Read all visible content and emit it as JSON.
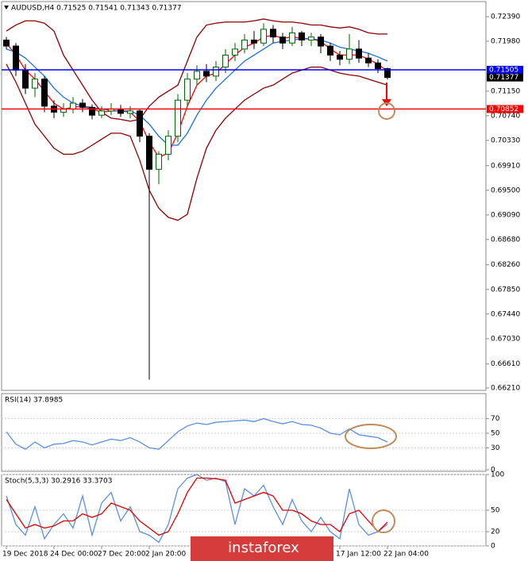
{
  "chart_data": [
    {
      "type": "candlestick",
      "title": "AUDUSD,H4  0.71525 0.71541 0.71343 0.71377",
      "ylim": [
        0.6617,
        0.7264
      ],
      "yticks": [
        {
          "value": 0.7239,
          "label": "0.72390"
        },
        {
          "value": 0.7198,
          "label": "0.71980"
        },
        {
          "value": 0.7115,
          "label": "0.71150"
        },
        {
          "value": 0.7074,
          "label": "0.70740"
        },
        {
          "value": 0.7033,
          "label": "0.70330"
        },
        {
          "value": 0.6991,
          "label": "0.69910"
        },
        {
          "value": 0.695,
          "label": "0.69500"
        },
        {
          "value": 0.6909,
          "label": "0.69090"
        },
        {
          "value": 0.6868,
          "label": "0.68680"
        },
        {
          "value": 0.6826,
          "label": "0.68260"
        },
        {
          "value": 0.6785,
          "label": "0.67850"
        },
        {
          "value": 0.6744,
          "label": "0.67440"
        },
        {
          "value": 0.6703,
          "label": "0.67030"
        },
        {
          "value": 0.6661,
          "label": "0.66610"
        },
        {
          "value": 0.6621,
          "label": "0.66210"
        }
      ],
      "open": [
        0.72,
        0.719,
        0.715,
        0.712,
        0.7135,
        0.709,
        0.708,
        0.7085,
        0.7095,
        0.7088,
        0.7075,
        0.7082,
        0.7085,
        0.7078,
        0.7082,
        0.704,
        0.6985,
        0.701,
        0.704,
        0.71,
        0.7135,
        0.7148,
        0.714,
        0.7155,
        0.7175,
        0.7185,
        0.72,
        0.7195,
        0.7218,
        0.7205,
        0.7195,
        0.7212,
        0.72,
        0.7205,
        0.719,
        0.7175,
        0.7168,
        0.7185,
        0.717,
        0.7162,
        0.71525
      ],
      "high": [
        0.7205,
        0.7195,
        0.716,
        0.7145,
        0.714,
        0.71,
        0.7095,
        0.7105,
        0.7102,
        0.7093,
        0.709,
        0.7095,
        0.7092,
        0.709,
        0.7085,
        0.7045,
        0.7015,
        0.705,
        0.711,
        0.7145,
        0.7158,
        0.716,
        0.7165,
        0.7185,
        0.7195,
        0.721,
        0.7215,
        0.7228,
        0.7225,
        0.7212,
        0.7222,
        0.7215,
        0.7212,
        0.721,
        0.7195,
        0.7182,
        0.721,
        0.72,
        0.7178,
        0.7168,
        0.71541
      ],
      "low": [
        0.7185,
        0.714,
        0.711,
        0.7105,
        0.708,
        0.707,
        0.7072,
        0.7078,
        0.708,
        0.7068,
        0.707,
        0.7075,
        0.7072,
        0.707,
        0.703,
        0.6635,
        0.696,
        0.7,
        0.703,
        0.709,
        0.7125,
        0.713,
        0.7132,
        0.7145,
        0.7165,
        0.7178,
        0.7185,
        0.719,
        0.7195,
        0.7185,
        0.719,
        0.719,
        0.719,
        0.7178,
        0.7165,
        0.7158,
        0.716,
        0.7162,
        0.7155,
        0.7145,
        0.71343
      ],
      "close": [
        0.719,
        0.715,
        0.712,
        0.7135,
        0.709,
        0.708,
        0.7085,
        0.7095,
        0.7088,
        0.7075,
        0.7082,
        0.7085,
        0.7078,
        0.7082,
        0.704,
        0.6985,
        0.701,
        0.704,
        0.71,
        0.7135,
        0.7148,
        0.714,
        0.7155,
        0.7175,
        0.7185,
        0.72,
        0.7195,
        0.7218,
        0.7205,
        0.7195,
        0.7212,
        0.72,
        0.7205,
        0.719,
        0.7175,
        0.7168,
        0.7185,
        0.717,
        0.7162,
        0.71525,
        0.71377
      ],
      "bull_color": "#006400",
      "bear_color": "#000000",
      "series": [
        {
          "color": "#ff0000",
          "values": [
            0.7195,
            0.7175,
            0.715,
            0.7135,
            0.7115,
            0.7095,
            0.7085,
            0.7088,
            0.709,
            0.7085,
            0.708,
            0.7082,
            0.7082,
            0.708,
            0.7065,
            0.703,
            0.7005,
            0.7012,
            0.7045,
            0.709,
            0.7125,
            0.714,
            0.7145,
            0.716,
            0.7175,
            0.7188,
            0.7195,
            0.7205,
            0.7208,
            0.7203,
            0.7205,
            0.7203,
            0.7202,
            0.7198,
            0.7185,
            0.7175,
            0.7175,
            0.7175,
            0.7168,
            0.716,
            0.7148
          ]
        },
        {
          "color": "#1e6fe0",
          "values": [
            0.7185,
            0.718,
            0.717,
            0.7155,
            0.714,
            0.712,
            0.7105,
            0.7095,
            0.709,
            0.7088,
            0.7085,
            0.7083,
            0.7082,
            0.7082,
            0.7075,
            0.706,
            0.704,
            0.7025,
            0.7025,
            0.7045,
            0.7075,
            0.71,
            0.712,
            0.7135,
            0.715,
            0.7165,
            0.7175,
            0.7185,
            0.7195,
            0.7198,
            0.72,
            0.7202,
            0.7202,
            0.72,
            0.7195,
            0.7188,
            0.7185,
            0.7182,
            0.7178,
            0.7172,
            0.7165
          ]
        },
        {
          "color": "#8b0000",
          "values": [
            0.7215,
            0.7225,
            0.7232,
            0.7232,
            0.7228,
            0.7215,
            0.7175,
            0.715,
            0.7125,
            0.71,
            0.708,
            0.707,
            0.7068,
            0.7065,
            0.7068,
            0.709,
            0.7105,
            0.7115,
            0.7125,
            0.7165,
            0.7205,
            0.7225,
            0.7228,
            0.723,
            0.723,
            0.723,
            0.7232,
            0.7235,
            0.7232,
            0.723,
            0.723,
            0.7228,
            0.7225,
            0.7225,
            0.7222,
            0.722,
            0.7222,
            0.7218,
            0.7212,
            0.721,
            0.721
          ]
        },
        {
          "color": "#8b0000",
          "values": [
            0.716,
            0.713,
            0.7095,
            0.706,
            0.704,
            0.702,
            0.701,
            0.701,
            0.7015,
            0.7025,
            0.7035,
            0.7045,
            0.7045,
            0.704,
            0.7,
            0.695,
            0.692,
            0.6905,
            0.69,
            0.691,
            0.697,
            0.702,
            0.705,
            0.707,
            0.7085,
            0.71,
            0.711,
            0.712,
            0.7125,
            0.7135,
            0.7145,
            0.715,
            0.7155,
            0.7155,
            0.715,
            0.7145,
            0.7142,
            0.714,
            0.7135,
            0.713,
            0.7125
          ]
        }
      ],
      "levels": [
        {
          "value": 0.71505,
          "label": "0.71505",
          "color": "#0000ff"
        },
        {
          "value": 0.70852,
          "label": "0.70852",
          "color": "#ff0000"
        },
        {
          "value": 0.71377,
          "label": "0.71377",
          "color": "#000000"
        }
      ]
    },
    {
      "type": "line",
      "title": "RSI(14) 37.8985",
      "ylim": [
        0,
        100
      ],
      "yticks": [
        70,
        50,
        30,
        0
      ],
      "series": [
        {
          "color": "#5b8fe0",
          "values": [
            52,
            35,
            28,
            38,
            30,
            35,
            36,
            40,
            38,
            34,
            38,
            42,
            40,
            44,
            38,
            30,
            28,
            40,
            52,
            60,
            64,
            62,
            65,
            66,
            67,
            68,
            66,
            70,
            66,
            63,
            66,
            62,
            61,
            57,
            50,
            48,
            56,
            48,
            46,
            44,
            37.8985
          ]
        }
      ]
    },
    {
      "type": "line",
      "title": "Stoch(5,3,3) 30.2916 33.3703",
      "ylim": [
        0,
        100
      ],
      "yticks": [
        100,
        50,
        20,
        0
      ],
      "categories": [
        "19 Dec 2018",
        null,
        null,
        null,
        null,
        "24 Dec 00:00",
        null,
        null,
        null,
        null,
        "27 Dec 20:00",
        null,
        null,
        null,
        null,
        "2 Jan 20:00",
        null,
        null,
        null,
        null,
        null,
        null,
        null,
        null,
        null,
        null,
        null,
        null,
        null,
        null,
        null,
        null,
        null,
        null,
        null,
        "17 Jan 12:00",
        null,
        null,
        null,
        null,
        "22 Jan 04:00"
      ],
      "series": [
        {
          "color": "#5b8fe0",
          "values": [
            70,
            30,
            15,
            55,
            10,
            30,
            45,
            25,
            70,
            15,
            60,
            75,
            35,
            55,
            20,
            15,
            5,
            30,
            80,
            95,
            100,
            92,
            95,
            90,
            30,
            80,
            70,
            85,
            55,
            30,
            65,
            35,
            20,
            40,
            20,
            10,
            80,
            30,
            15,
            20,
            30.2916
          ]
        },
        {
          "color": "#e00000",
          "values": [
            65,
            45,
            25,
            30,
            25,
            28,
            35,
            35,
            45,
            40,
            45,
            60,
            55,
            50,
            35,
            25,
            15,
            20,
            45,
            75,
            95,
            95,
            94,
            92,
            60,
            65,
            70,
            75,
            70,
            50,
            50,
            45,
            35,
            30,
            30,
            20,
            45,
            50,
            35,
            20,
            33.3703
          ]
        }
      ]
    },
    {
      "type": "watermark",
      "title": "instaforex"
    }
  ]
}
